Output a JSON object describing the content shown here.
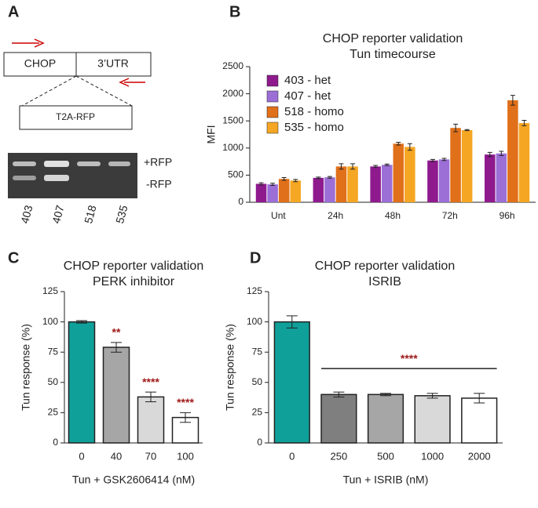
{
  "panel_labels": [
    "A",
    "B",
    "C",
    "D"
  ],
  "diagram": {
    "boxes": [
      "CHOP",
      "3’UTR"
    ],
    "insert": "T2A-RFP",
    "bands": [
      "+RFP",
      "-RFP"
    ],
    "lanes": [
      "403",
      "407",
      "518",
      "535"
    ]
  },
  "chart_data": [
    {
      "type": "bar",
      "title": "CHOP reporter validation",
      "subtitle": "Tun timecourse",
      "ylabel": "MFI",
      "categories": [
        "Unt",
        "24h",
        "48h",
        "72h",
        "96h"
      ],
      "series": [
        {
          "name": "403 - het",
          "color": "#8e1a8e",
          "values": [
            340,
            450,
            660,
            770,
            880
          ],
          "errors": [
            20,
            15,
            20,
            20,
            40
          ]
        },
        {
          "name": "407 - het",
          "color": "#9b6fd6",
          "values": [
            330,
            460,
            690,
            790,
            900
          ],
          "errors": [
            20,
            15,
            15,
            20,
            40
          ]
        },
        {
          "name": "518 - homo",
          "color": "#e0701a",
          "values": [
            430,
            660,
            1080,
            1370,
            1880
          ],
          "errors": [
            25,
            50,
            25,
            70,
            90
          ]
        },
        {
          "name": "535 - homo",
          "color": "#f5a623",
          "values": [
            400,
            660,
            1020,
            1330,
            1460
          ],
          "errors": [
            20,
            50,
            60,
            10,
            50
          ]
        }
      ],
      "ylim": [
        0,
        2500
      ],
      "yticks": [
        0,
        500,
        1000,
        1500,
        2000,
        2500
      ],
      "legend": "upper left"
    },
    {
      "type": "bar",
      "title": "CHOP reporter validation",
      "subtitle": "PERK inhibitor",
      "ylabel": "Tun response (%)",
      "xlabel": "Tun + GSK2606414 (nM)",
      "categories": [
        "0",
        "40",
        "70",
        "100"
      ],
      "values": [
        100,
        79,
        38,
        21
      ],
      "errors": [
        1,
        4,
        4,
        4
      ],
      "colors": [
        "#10a09a",
        "#a6a6a6",
        "#d9d9d9",
        "#ffffff"
      ],
      "significance": [
        null,
        "**",
        "****",
        "****"
      ],
      "ylim": [
        0,
        125
      ],
      "yticks": [
        0,
        25,
        50,
        75,
        100,
        125
      ]
    },
    {
      "type": "bar",
      "title": "CHOP reporter validation",
      "subtitle": "ISRIB",
      "ylabel": "Tun response (%)",
      "xlabel": "Tun + ISRIB (nM)",
      "categories": [
        "0",
        "250",
        "500",
        "1000",
        "2000"
      ],
      "values": [
        100,
        40,
        40,
        39,
        37
      ],
      "errors": [
        5,
        2,
        1,
        2,
        4
      ],
      "colors": [
        "#10a09a",
        "#7f7f7f",
        "#a6a6a6",
        "#d9d9d9",
        "#ffffff"
      ],
      "significance_label": "****",
      "ylim": [
        0,
        125
      ],
      "yticks": [
        0,
        25,
        50,
        75,
        100,
        125
      ]
    }
  ]
}
